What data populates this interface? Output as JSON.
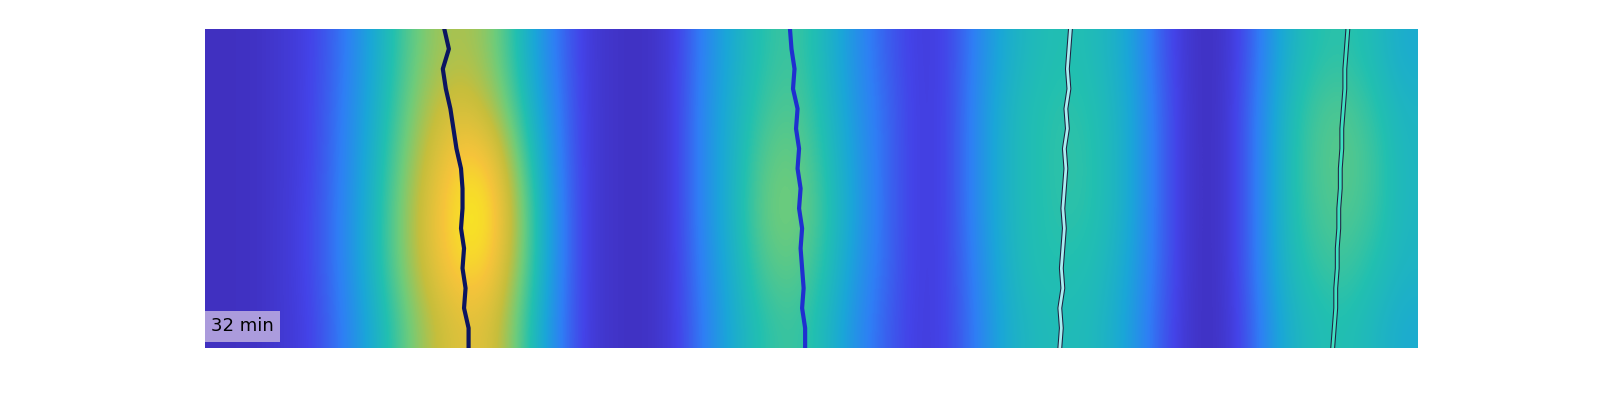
{
  "chart_data": {
    "type": "heatmap",
    "annotation": "32 min",
    "xlim": [
      0,
      40
    ],
    "ylim": [
      32,
      0
    ],
    "tick_labels": false,
    "color_range": [
      0,
      1
    ],
    "cells": [
      [
        0.05,
        0.05,
        0.08,
        0.12,
        0.22,
        0.38,
        0.55,
        0.68,
        0.72,
        0.65,
        0.45,
        0.25,
        0.1,
        0.06,
        0.05,
        0.1,
        0.28,
        0.42,
        0.52,
        0.55,
        0.45,
        0.3,
        0.18,
        0.1,
        0.12,
        0.28,
        0.42,
        0.48,
        0.5,
        0.47,
        0.38,
        0.18,
        0.06,
        0.05,
        0.18,
        0.4,
        0.5,
        0.52,
        0.48,
        0.4
      ],
      [
        0.05,
        0.05,
        0.08,
        0.12,
        0.24,
        0.4,
        0.58,
        0.74,
        0.8,
        0.72,
        0.5,
        0.28,
        0.1,
        0.06,
        0.05,
        0.1,
        0.3,
        0.44,
        0.55,
        0.58,
        0.47,
        0.32,
        0.2,
        0.1,
        0.12,
        0.3,
        0.45,
        0.5,
        0.52,
        0.49,
        0.4,
        0.2,
        0.06,
        0.05,
        0.2,
        0.44,
        0.55,
        0.58,
        0.52,
        0.44
      ],
      [
        0.05,
        0.05,
        0.08,
        0.12,
        0.25,
        0.42,
        0.62,
        0.8,
        0.92,
        0.88,
        0.58,
        0.3,
        0.1,
        0.06,
        0.05,
        0.1,
        0.3,
        0.45,
        0.6,
        0.62,
        0.5,
        0.34,
        0.2,
        0.1,
        0.12,
        0.3,
        0.45,
        0.5,
        0.53,
        0.5,
        0.4,
        0.2,
        0.06,
        0.05,
        0.2,
        0.45,
        0.56,
        0.6,
        0.55,
        0.45
      ],
      [
        0.05,
        0.05,
        0.08,
        0.13,
        0.26,
        0.44,
        0.65,
        0.84,
        0.97,
        0.95,
        0.64,
        0.32,
        0.1,
        0.06,
        0.05,
        0.1,
        0.3,
        0.46,
        0.62,
        0.64,
        0.52,
        0.35,
        0.2,
        0.1,
        0.12,
        0.3,
        0.45,
        0.5,
        0.52,
        0.5,
        0.4,
        0.2,
        0.06,
        0.05,
        0.2,
        0.45,
        0.55,
        0.58,
        0.54,
        0.45
      ],
      [
        0.05,
        0.05,
        0.08,
        0.13,
        0.26,
        0.44,
        0.64,
        0.82,
        0.93,
        0.9,
        0.62,
        0.32,
        0.1,
        0.06,
        0.05,
        0.1,
        0.28,
        0.44,
        0.58,
        0.6,
        0.5,
        0.33,
        0.2,
        0.1,
        0.12,
        0.28,
        0.44,
        0.5,
        0.5,
        0.48,
        0.38,
        0.2,
        0.06,
        0.05,
        0.2,
        0.44,
        0.52,
        0.55,
        0.5,
        0.44
      ],
      [
        0.05,
        0.05,
        0.08,
        0.12,
        0.24,
        0.4,
        0.58,
        0.74,
        0.82,
        0.8,
        0.56,
        0.3,
        0.1,
        0.06,
        0.05,
        0.1,
        0.26,
        0.42,
        0.52,
        0.55,
        0.46,
        0.3,
        0.18,
        0.1,
        0.12,
        0.26,
        0.42,
        0.47,
        0.48,
        0.46,
        0.36,
        0.18,
        0.06,
        0.05,
        0.18,
        0.4,
        0.48,
        0.5,
        0.46,
        0.4
      ]
    ],
    "series": [
      {
        "color": "#0b1560",
        "line_style": "solid",
        "y": [
          0,
          2,
          4,
          6,
          8,
          10,
          12,
          14,
          16,
          18,
          20,
          22,
          24,
          26,
          28,
          30,
          32
        ],
        "x": [
          7.9,
          8.05,
          7.85,
          7.95,
          8.1,
          8.2,
          8.3,
          8.45,
          8.5,
          8.5,
          8.45,
          8.55,
          8.5,
          8.6,
          8.55,
          8.7,
          8.7
        ]
      },
      {
        "color": "#1f2fd0",
        "line_style": "solid",
        "y": [
          0,
          2,
          4,
          6,
          8,
          10,
          12,
          14,
          16,
          18,
          20,
          22,
          24,
          26,
          28,
          30,
          32
        ],
        "x": [
          19.3,
          19.35,
          19.45,
          19.4,
          19.55,
          19.5,
          19.6,
          19.55,
          19.65,
          19.6,
          19.7,
          19.65,
          19.7,
          19.75,
          19.7,
          19.8,
          19.8
        ]
      },
      {
        "color": "#a8eef0",
        "line_style": "solid",
        "y": [
          0,
          2,
          4,
          6,
          8,
          10,
          12,
          14,
          16,
          18,
          20,
          22,
          24,
          26,
          28,
          30,
          32
        ],
        "x": [
          28.55,
          28.5,
          28.45,
          28.5,
          28.4,
          28.45,
          28.35,
          28.4,
          28.35,
          28.3,
          28.35,
          28.3,
          28.25,
          28.3,
          28.2,
          28.25,
          28.2
        ]
      },
      {
        "color": "#3fe0c0",
        "line_style": "solid",
        "y": [
          0,
          2,
          4,
          6,
          8,
          10,
          12,
          14,
          16,
          18,
          20,
          22,
          24,
          26,
          28,
          30,
          32
        ],
        "x": [
          37.7,
          37.65,
          37.6,
          37.6,
          37.55,
          37.5,
          37.5,
          37.45,
          37.45,
          37.4,
          37.4,
          37.35,
          37.35,
          37.3,
          37.3,
          37.25,
          37.2
        ]
      }
    ]
  }
}
